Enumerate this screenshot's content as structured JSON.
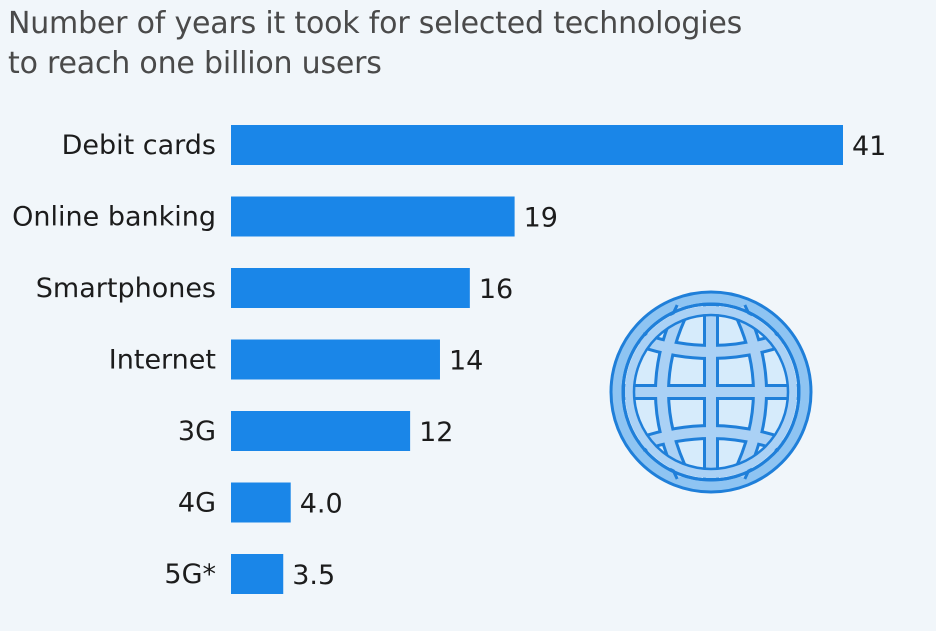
{
  "chart_data": {
    "type": "bar",
    "orientation": "horizontal",
    "title": "Number of years it took for selected technologies to reach one billion users",
    "title_lines": [
      "Number of years it took for selected technologies",
      "to reach one billion users"
    ],
    "categories": [
      "Debit cards",
      "Online banking",
      "Smartphones",
      "Internet",
      "3G",
      "4G",
      "5G*"
    ],
    "values": [
      41,
      19,
      16,
      14,
      12,
      4.0,
      3.5
    ],
    "value_labels": [
      "41",
      "19",
      "16",
      "14",
      "12",
      "4.0",
      "3.5"
    ],
    "xlim": [
      0,
      41
    ],
    "xlabel": "",
    "ylabel": "",
    "grid": false,
    "bar_color": "#1a86e8",
    "decoration": "globe-icon"
  },
  "colors": {
    "background": "#f1f6fa",
    "bar": "#1a86e8",
    "globe_fill": "#aad1f5",
    "globe_stroke": "#1f7fd9"
  }
}
